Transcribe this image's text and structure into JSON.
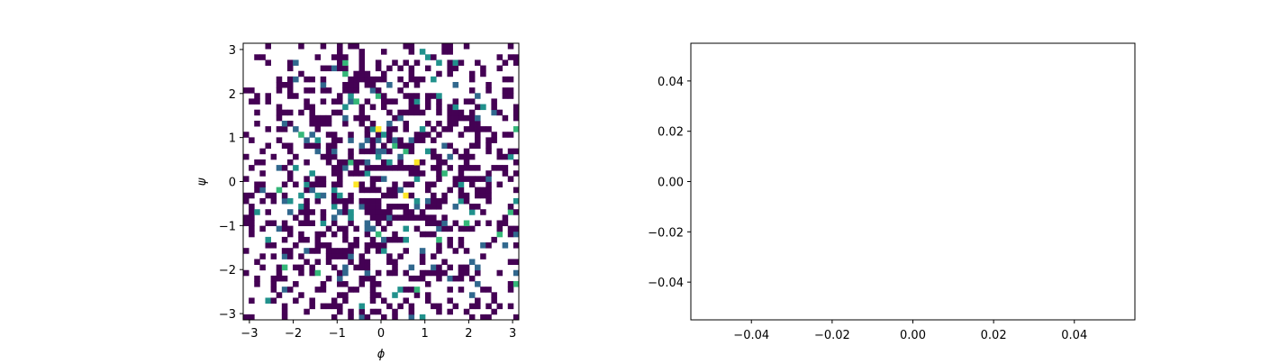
{
  "chart_data": [
    {
      "type": "heatmap",
      "title": "",
      "xlabel": "ϕ",
      "ylabel": "ψ",
      "xlim": [
        -3.14159,
        3.14159
      ],
      "ylim": [
        -3.14159,
        3.14159
      ],
      "xticks": [
        -3,
        -2,
        -1,
        0,
        1,
        2,
        3
      ],
      "yticks": [
        -3,
        -2,
        -1,
        0,
        1,
        2,
        3
      ],
      "xtick_labels": [
        "−3",
        "−2",
        "−1",
        "0",
        "1",
        "2",
        "3"
      ],
      "ytick_labels": [
        "−3",
        "−2",
        "−1",
        "0",
        "1",
        "2",
        "3"
      ],
      "bins": [
        50,
        50
      ],
      "empty_bin_color": "#ffffff",
      "colormap": [
        "#440154",
        "#31688e",
        "#21918c",
        "#35b779",
        "#fde725"
      ],
      "count_levels": [
        1,
        2,
        3,
        4,
        5
      ],
      "grid": false,
      "legend": "none"
    },
    {
      "type": "scatter",
      "title": "",
      "xlabel": "",
      "ylabel": "",
      "xlim": [
        -0.055,
        0.055
      ],
      "ylim": [
        -0.055,
        0.055
      ],
      "xticks": [
        -0.04,
        -0.02,
        0.0,
        0.02,
        0.04
      ],
      "yticks": [
        -0.04,
        -0.02,
        0.0,
        0.02,
        0.04
      ],
      "xtick_labels": [
        "−0.04",
        "−0.02",
        "0.00",
        "0.02",
        "0.04"
      ],
      "ytick_labels": [
        "−0.04",
        "−0.02",
        "0.00",
        "0.02",
        "0.04"
      ],
      "series": [],
      "grid": false,
      "legend": "none"
    }
  ]
}
